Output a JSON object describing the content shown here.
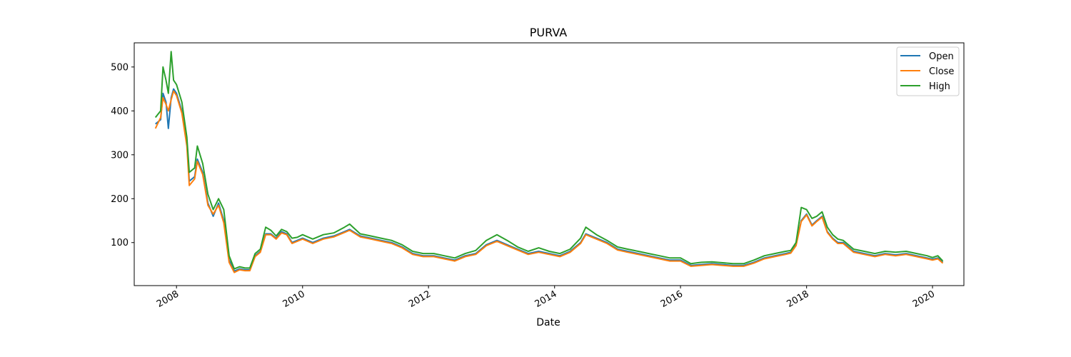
{
  "chart_data": {
    "type": "line",
    "title": "PURVA",
    "xlabel": "Date",
    "ylabel": "",
    "xlim": [
      "2007-05-01",
      "2020-07-01"
    ],
    "ylim": [
      2,
      555
    ],
    "x_ticks": [
      "2008",
      "2010",
      "2012",
      "2014",
      "2016",
      "2018",
      "2020"
    ],
    "y_ticks": [
      100,
      200,
      300,
      400,
      500
    ],
    "legend_position": "top-right",
    "grid": false,
    "x": [
      "2007-09-01",
      "2007-10-01",
      "2007-10-15",
      "2007-11-01",
      "2007-11-15",
      "2007-12-01",
      "2007-12-15",
      "2008-01-01",
      "2008-02-01",
      "2008-03-01",
      "2008-03-15",
      "2008-04-15",
      "2008-05-01",
      "2008-06-01",
      "2008-07-01",
      "2008-08-01",
      "2008-09-01",
      "2008-10-01",
      "2008-11-01",
      "2008-12-01",
      "2009-01-01",
      "2009-02-01",
      "2009-03-01",
      "2009-04-01",
      "2009-05-01",
      "2009-06-01",
      "2009-07-01",
      "2009-08-01",
      "2009-09-01",
      "2009-10-01",
      "2009-11-01",
      "2009-12-01",
      "2010-01-01",
      "2010-03-01",
      "2010-05-01",
      "2010-07-01",
      "2010-09-01",
      "2010-10-01",
      "2010-12-01",
      "2011-02-01",
      "2011-04-01",
      "2011-06-01",
      "2011-08-01",
      "2011-10-01",
      "2011-12-01",
      "2012-02-01",
      "2012-04-01",
      "2012-06-01",
      "2012-08-01",
      "2012-10-01",
      "2012-12-01",
      "2013-02-01",
      "2013-04-01",
      "2013-06-01",
      "2013-08-01",
      "2013-10-01",
      "2013-12-01",
      "2014-02-01",
      "2014-04-01",
      "2014-06-01",
      "2014-07-01",
      "2014-09-01",
      "2014-11-01",
      "2015-01-01",
      "2015-03-01",
      "2015-05-01",
      "2015-07-01",
      "2015-09-01",
      "2015-11-01",
      "2016-01-01",
      "2016-03-01",
      "2016-05-01",
      "2016-07-01",
      "2016-09-01",
      "2016-11-01",
      "2017-01-01",
      "2017-03-01",
      "2017-05-01",
      "2017-07-01",
      "2017-09-01",
      "2017-10-01",
      "2017-11-01",
      "2017-12-01",
      "2018-01-01",
      "2018-02-01",
      "2018-03-01",
      "2018-04-01",
      "2018-05-01",
      "2018-06-01",
      "2018-07-01",
      "2018-08-01",
      "2018-10-01",
      "2018-12-01",
      "2019-02-01",
      "2019-04-01",
      "2019-06-01",
      "2019-08-01",
      "2019-10-01",
      "2019-12-01",
      "2020-01-01",
      "2020-02-01",
      "2020-03-01"
    ],
    "series": [
      {
        "name": "Open",
        "color": "#1f77b4",
        "values": [
          370,
          380,
          440,
          420,
          360,
          430,
          450,
          440,
          400,
          330,
          240,
          250,
          290,
          260,
          190,
          160,
          190,
          150,
          60,
          35,
          40,
          38,
          38,
          70,
          80,
          120,
          120,
          110,
          125,
          120,
          100,
          105,
          110,
          100,
          110,
          115,
          125,
          130,
          115,
          110,
          105,
          100,
          90,
          75,
          70,
          70,
          65,
          60,
          70,
          75,
          95,
          105,
          95,
          85,
          75,
          80,
          75,
          70,
          80,
          100,
          120,
          110,
          100,
          85,
          80,
          75,
          70,
          65,
          60,
          60,
          48,
          50,
          52,
          50,
          48,
          48,
          55,
          65,
          70,
          75,
          78,
          95,
          150,
          165,
          140,
          150,
          160,
          125,
          110,
          100,
          100,
          80,
          75,
          70,
          75,
          72,
          75,
          70,
          65,
          62,
          65,
          55
        ]
      },
      {
        "name": "Close",
        "color": "#ff7f0e",
        "values": [
          360,
          385,
          430,
          415,
          400,
          425,
          445,
          435,
          395,
          320,
          230,
          245,
          285,
          255,
          185,
          165,
          185,
          145,
          55,
          32,
          38,
          36,
          36,
          68,
          78,
          118,
          118,
          108,
          122,
          118,
          98,
          103,
          108,
          98,
          108,
          113,
          123,
          128,
          113,
          108,
          103,
          98,
          88,
          73,
          68,
          68,
          63,
          58,
          68,
          73,
          93,
          103,
          93,
          83,
          73,
          78,
          73,
          68,
          78,
          98,
          118,
          108,
          98,
          83,
          78,
          73,
          68,
          63,
          58,
          58,
          46,
          48,
          50,
          48,
          46,
          46,
          53,
          63,
          68,
          73,
          76,
          93,
          148,
          163,
          138,
          148,
          158,
          123,
          108,
          98,
          98,
          78,
          73,
          68,
          73,
          70,
          73,
          68,
          63,
          60,
          63,
          53
        ]
      },
      {
        "name": "High",
        "color": "#2ca02c",
        "values": [
          385,
          400,
          500,
          470,
          440,
          535,
          470,
          460,
          420,
          340,
          260,
          270,
          320,
          280,
          210,
          175,
          200,
          175,
          70,
          40,
          45,
          42,
          42,
          75,
          85,
          135,
          128,
          115,
          130,
          125,
          110,
          112,
          118,
          108,
          118,
          122,
          135,
          142,
          120,
          115,
          110,
          105,
          95,
          80,
          75,
          75,
          70,
          65,
          75,
          82,
          105,
          118,
          105,
          90,
          80,
          88,
          80,
          75,
          85,
          110,
          135,
          118,
          105,
          90,
          85,
          80,
          75,
          70,
          65,
          65,
          52,
          55,
          56,
          54,
          52,
          52,
          60,
          70,
          75,
          80,
          82,
          100,
          180,
          175,
          155,
          160,
          170,
          135,
          118,
          108,
          105,
          85,
          80,
          75,
          80,
          78,
          80,
          75,
          70,
          66,
          70,
          58
        ]
      }
    ]
  }
}
